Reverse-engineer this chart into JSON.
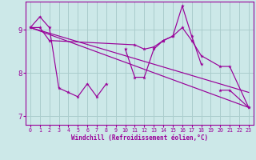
{
  "xlabel": "Windchill (Refroidissement éolien,°C)",
  "bg_color": "#cce8e8",
  "grid_color": "#aacccc",
  "line_color": "#990099",
  "xlim": [
    -0.5,
    23.5
  ],
  "ylim": [
    6.8,
    9.65
  ],
  "yticks": [
    7,
    8,
    9
  ],
  "xticks": [
    0,
    1,
    2,
    3,
    4,
    5,
    6,
    7,
    8,
    9,
    10,
    11,
    12,
    13,
    14,
    15,
    16,
    17,
    18,
    19,
    20,
    21,
    22,
    23
  ],
  "series1_segments": [
    {
      "x": [
        0,
        1,
        2,
        3,
        4,
        5,
        6,
        7,
        8
      ],
      "y": [
        9.05,
        9.3,
        9.05,
        7.65,
        7.55,
        7.45,
        7.75,
        7.45,
        7.75
      ]
    },
    {
      "x": [
        10,
        11,
        12,
        13,
        14,
        15,
        16,
        17,
        18
      ],
      "y": [
        8.55,
        7.9,
        7.9,
        8.55,
        8.75,
        8.85,
        9.55,
        8.85,
        8.2
      ]
    },
    {
      "x": [
        20,
        21,
        23
      ],
      "y": [
        7.6,
        7.6,
        7.2
      ]
    }
  ],
  "series2": {
    "x": [
      0,
      23
    ],
    "y": [
      9.05,
      7.2
    ]
  },
  "series3": {
    "x": [
      0,
      1,
      2,
      11,
      12,
      13,
      14,
      15,
      16,
      17,
      18,
      20,
      21,
      23
    ],
    "y": [
      9.05,
      9.05,
      8.75,
      8.65,
      8.55,
      8.6,
      8.75,
      8.85,
      9.05,
      8.75,
      8.4,
      8.15,
      8.15,
      7.2
    ]
  },
  "series4": {
    "x": [
      0,
      23
    ],
    "y": [
      9.05,
      7.55
    ]
  }
}
